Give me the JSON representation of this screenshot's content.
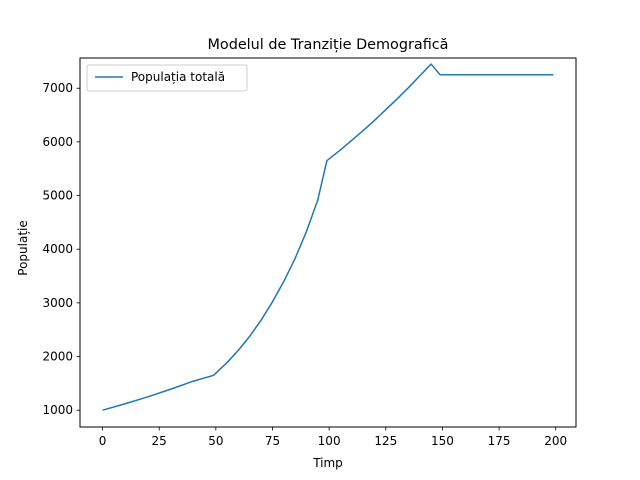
{
  "chart_data": {
    "type": "line",
    "title": "Modelul de Tranziție Demografică",
    "xlabel": "Timp",
    "ylabel": "Populație",
    "xlim": [
      -9.95,
      208.95
    ],
    "ylim": [
      687,
      7563
    ],
    "xticks": [
      0,
      25,
      50,
      75,
      100,
      125,
      150,
      175,
      200
    ],
    "yticks": [
      1000,
      2000,
      3000,
      4000,
      5000,
      6000,
      7000
    ],
    "grid": false,
    "legend_position": "top-left",
    "series": [
      {
        "name": "Populația totală",
        "color": "#1f77b4",
        "x": [
          0,
          10,
          20,
          30,
          40,
          49,
          55,
          60,
          65,
          70,
          75,
          80,
          85,
          90,
          95,
          99,
          105,
          110,
          115,
          120,
          125,
          130,
          135,
          140,
          145,
          149,
          160,
          170,
          180,
          190,
          199
        ],
        "y": [
          1000,
          1120,
          1250,
          1390,
          1540,
          1650,
          1890,
          2120,
          2380,
          2680,
          3020,
          3400,
          3830,
          4330,
          4920,
          5650,
          5850,
          6030,
          6210,
          6400,
          6600,
          6800,
          7010,
          7230,
          7450,
          7250,
          7250,
          7250,
          7250,
          7250,
          7250
        ]
      }
    ]
  }
}
